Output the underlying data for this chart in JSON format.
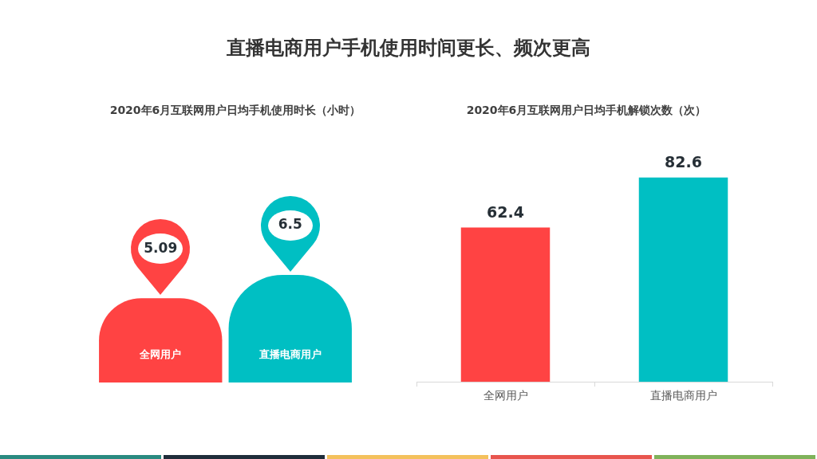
{
  "chart_data": [
    {
      "type": "bar",
      "title": "直播电商用户手机使用时间更长、频次更高",
      "subtitle": "2020年6月互联网用户日均手机使用时长（小时）",
      "categories": [
        "全网用户",
        "直播电商用户"
      ],
      "values": [
        5.09,
        6.5
      ],
      "colors": [
        "#ff4343",
        "#00bfc3"
      ],
      "data_labels": true
    },
    {
      "type": "bar",
      "subtitle": "2020年6月互联网用户日均手机解锁次数（次）",
      "categories": [
        "全网用户",
        "直播电商用户"
      ],
      "values": [
        62.4,
        82.6
      ],
      "colors": [
        "#ff4343",
        "#00bfc3"
      ],
      "data_labels": true
    }
  ]
}
